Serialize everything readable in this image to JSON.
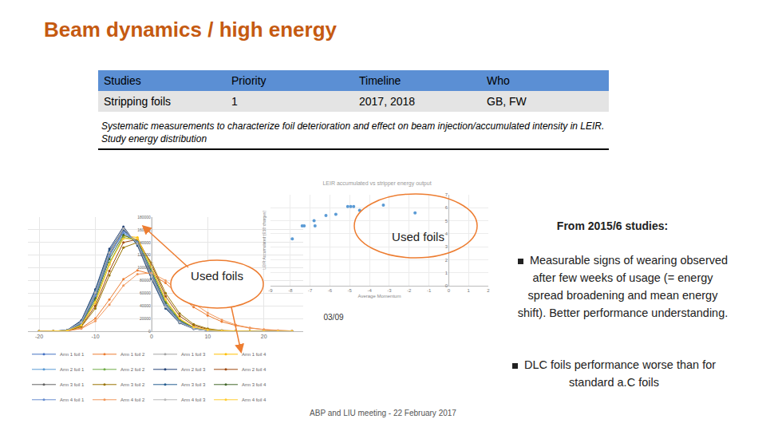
{
  "slide": {
    "title": "Beam dynamics / high energy",
    "table": {
      "header": [
        "Studies",
        "Priority",
        "Timeline",
        "Who"
      ],
      "rows": [
        [
          "Stripping foils",
          "1",
          "2017, 2018",
          "GB, FW"
        ]
      ],
      "note": "Systematic measurements to characterize foil deterioration and effect on beam injection/accumulated intensity in LEIR. Study energy distribution"
    },
    "callouts": {
      "used_foils_left": "Used foils",
      "used_foils_right": "Used foils",
      "date": "03/09"
    },
    "side_heading": "From 2015/6 studies:",
    "bullets": [
      "Measurable signs of wearing observed after few weeks of usage (= energy spread broadening and mean energy shift). Better performance understanding.",
      "DLC foils performance worse than for standard a.C foils"
    ],
    "footer": "ABP and LIU meeting - 22 February 2017"
  },
  "chart_data": [
    {
      "type": "line",
      "marker": "circle",
      "grid": true,
      "legend": "bottom",
      "x": [
        -20,
        -17.5,
        -15,
        -12.5,
        -10,
        -7.5,
        -5,
        -2.5,
        0,
        2.5,
        5,
        7.5,
        10,
        12.5,
        15,
        17.5,
        20,
        22.5,
        25
      ],
      "xlim": [
        -22,
        27
      ],
      "xticks": [
        -20,
        -10,
        0,
        10,
        20
      ],
      "ylim": [
        0,
        180000
      ],
      "yticks": [
        0,
        20000,
        40000,
        60000,
        80000,
        100000,
        120000,
        140000,
        160000,
        180000
      ],
      "series": [
        {
          "name": "Arm 1 foil 1",
          "color": "#4472c4",
          "values": [
            0,
            0,
            1000,
            12000,
            55000,
            118000,
            158000,
            142000,
            92000,
            42000,
            16000,
            5000,
            1500,
            500,
            0,
            0,
            0,
            0,
            0
          ]
        },
        {
          "name": "Arm 1 foil 2",
          "color": "#ed7d31",
          "values": [
            0,
            0,
            500,
            5000,
            20000,
            50000,
            82000,
            96000,
            90000,
            76000,
            56000,
            38000,
            25000,
            15000,
            9000,
            5000,
            2500,
            1000,
            500
          ]
        },
        {
          "name": "Arm 1 foil 3",
          "color": "#a5a5a5",
          "values": [
            0,
            0,
            1500,
            15000,
            62000,
            125000,
            163000,
            138000,
            85000,
            38000,
            14000,
            4000,
            1200,
            300,
            0,
            0,
            0,
            0,
            0
          ]
        },
        {
          "name": "Arm 1 foil 4",
          "color": "#ffc000",
          "values": [
            0,
            0,
            800,
            9000,
            45000,
            105000,
            150000,
            148000,
            100000,
            48000,
            19000,
            6000,
            2000,
            600,
            100,
            0,
            0,
            0,
            0
          ]
        },
        {
          "name": "Arm 2 foil 1",
          "color": "#5b9bd5",
          "values": [
            0,
            0,
            1200,
            13000,
            58000,
            120000,
            155000,
            140000,
            90000,
            41000,
            15000,
            4500,
            1300,
            400,
            0,
            0,
            0,
            0,
            0
          ]
        },
        {
          "name": "Arm 2 foil 2",
          "color": "#70ad47",
          "values": [
            0,
            0,
            900,
            10000,
            48000,
            108000,
            148000,
            143000,
            98000,
            47000,
            18000,
            5500,
            1800,
            500,
            0,
            0,
            0,
            0,
            0
          ]
        },
        {
          "name": "Arm 2 foil 3",
          "color": "#264478",
          "values": [
            0,
            0,
            1800,
            17000,
            66000,
            130000,
            165000,
            135000,
            82000,
            36000,
            13000,
            3800,
            1100,
            300,
            0,
            0,
            0,
            0,
            0
          ]
        },
        {
          "name": "Arm 2 foil 4",
          "color": "#9e480e",
          "values": [
            0,
            0,
            700,
            8000,
            40000,
            95000,
            140000,
            145000,
            105000,
            55000,
            24000,
            9000,
            3000,
            900,
            200,
            0,
            0,
            0,
            0
          ]
        },
        {
          "name": "Arm 3 foil 1",
          "color": "#636363",
          "values": [
            0,
            0,
            1300,
            14000,
            60000,
            122000,
            160000,
            139000,
            88000,
            39000,
            14500,
            4200,
            1200,
            350,
            0,
            0,
            0,
            0,
            0
          ]
        },
        {
          "name": "Arm 3 foil 2",
          "color": "#997300",
          "values": [
            0,
            0,
            600,
            7000,
            36000,
            88000,
            132000,
            140000,
            108000,
            60000,
            28000,
            11000,
            4000,
            1200,
            300,
            0,
            0,
            0,
            0
          ]
        },
        {
          "name": "Arm 3 foil 3",
          "color": "#255e91",
          "values": [
            0,
            0,
            1600,
            16000,
            64000,
            127000,
            161000,
            137000,
            84000,
            37000,
            13500,
            4000,
            1100,
            300,
            0,
            0,
            0,
            0,
            0
          ]
        },
        {
          "name": "Arm 3 foil 4",
          "color": "#43682b",
          "values": [
            0,
            0,
            1000,
            11000,
            52000,
            114000,
            152000,
            141000,
            94000,
            44000,
            17000,
            5200,
            1600,
            450,
            0,
            0,
            0,
            0,
            0
          ]
        },
        {
          "name": "Arm 4 foil 1",
          "color": "#698ed0",
          "values": [
            0,
            0,
            1100,
            12500,
            56000,
            119000,
            156000,
            141000,
            91000,
            41500,
            15500,
            4700,
            1400,
            420,
            0,
            0,
            0,
            0,
            0
          ]
        },
        {
          "name": "Arm 4 foil 2",
          "color": "#f1975a",
          "values": [
            0,
            0,
            400,
            4000,
            16000,
            42000,
            72000,
            90000,
            92000,
            80000,
            62000,
            44000,
            29000,
            18000,
            10000,
            5500,
            2800,
            1200,
            500
          ]
        },
        {
          "name": "Arm 4 foil 3",
          "color": "#b7b7b7",
          "values": [
            0,
            0,
            1400,
            14500,
            61000,
            124000,
            162000,
            138000,
            86000,
            38500,
            14000,
            4100,
            1150,
            320,
            0,
            0,
            0,
            0,
            0
          ]
        },
        {
          "name": "Arm 4 foil 4",
          "color": "#ffcd33",
          "values": [
            0,
            0,
            850,
            9500,
            46000,
            106000,
            146000,
            146000,
            101000,
            50000,
            20000,
            6500,
            2100,
            650,
            120,
            0,
            0,
            0,
            0
          ]
        }
      ]
    },
    {
      "type": "scatter",
      "marker": "circle",
      "grid": true,
      "title": "LEIR accumulated vs stripper energy output",
      "x_label": "Average Momentum",
      "y_label": "LEIR Accumulated (E10 charges)",
      "color": "#5b9bd5",
      "x": [
        -7.9,
        -7.4,
        -7.3,
        -6.8,
        -6.75,
        -6.2,
        -5.7,
        -5.1,
        -4.95,
        -4.8,
        -4.5,
        -3.3,
        -1.7
      ],
      "values": [
        3.6,
        4.6,
        4.6,
        5.0,
        4.6,
        5.4,
        5.5,
        6.1,
        6.1,
        6.1,
        5.8,
        6.2,
        5.6
      ],
      "xlim": [
        -9,
        2
      ],
      "xticks": [
        -9,
        -8,
        -7,
        -6,
        -5,
        -4,
        -3,
        -2,
        -1,
        0,
        1,
        2
      ],
      "ylim": [
        0,
        7
      ],
      "yticks": [
        0,
        1,
        2,
        3,
        4,
        5,
        6,
        7
      ]
    }
  ]
}
